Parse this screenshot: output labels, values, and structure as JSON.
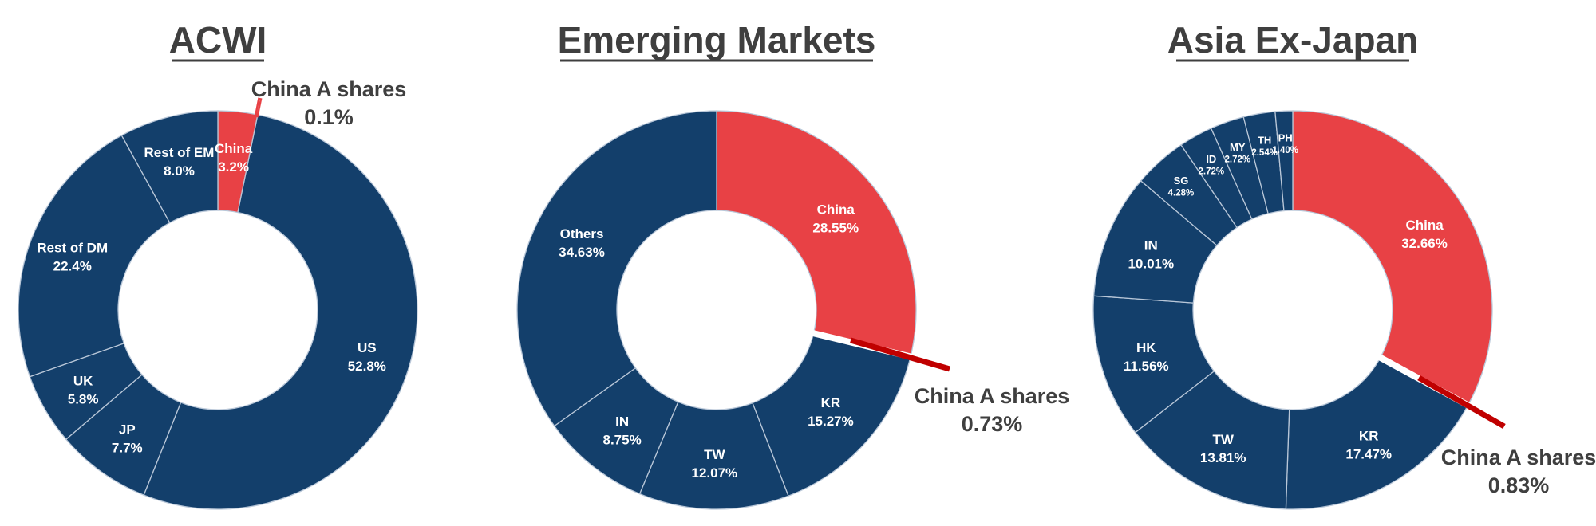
{
  "colors": {
    "navy": "#133f6b",
    "china_red": "#e84145",
    "china_a_dark_red": "#c00000",
    "divider": "#b9c7d8",
    "title_text": "#3f3f3f",
    "label_text": "#ffffff"
  },
  "chart_data": [
    {
      "type": "pie",
      "variant": "donut",
      "title": "ACWI",
      "start": "12 o'clock",
      "direction": "clockwise",
      "slices": [
        {
          "name": "China",
          "value": 3.2,
          "label": "3.2%",
          "color": "#e84145"
        },
        {
          "name": "US",
          "value": 52.8,
          "label": "52.8%",
          "color": "#133f6b"
        },
        {
          "name": "JP",
          "value": 7.7,
          "label": "7.7%",
          "color": "#133f6b"
        },
        {
          "name": "UK",
          "value": 5.8,
          "label": "5.8%",
          "color": "#133f6b"
        },
        {
          "name": "Rest of DM",
          "value": 22.4,
          "label": "22.4%",
          "color": "#133f6b"
        },
        {
          "name": "Rest of EM",
          "value": 8.0,
          "label": "8.0%",
          "color": "#133f6b"
        }
      ],
      "callout": {
        "name": "China A shares",
        "value": 0.1,
        "label": "0.1%"
      }
    },
    {
      "type": "pie",
      "variant": "donut",
      "title": "Emerging Markets",
      "start": "12 o'clock",
      "direction": "clockwise",
      "slices": [
        {
          "name": "China",
          "value": 28.55,
          "label": "28.55%",
          "color": "#e84145"
        },
        {
          "name": "KR",
          "value": 15.27,
          "label": "15.27%",
          "color": "#133f6b"
        },
        {
          "name": "TW",
          "value": 12.07,
          "label": "12.07%",
          "color": "#133f6b"
        },
        {
          "name": "IN",
          "value": 8.75,
          "label": "8.75%",
          "color": "#133f6b"
        },
        {
          "name": "Others",
          "value": 34.63,
          "label": "34.63%",
          "color": "#133f6b"
        }
      ],
      "callout": {
        "name": "China A shares",
        "value": 0.73,
        "label": "0.73%"
      }
    },
    {
      "type": "pie",
      "variant": "donut",
      "title": "Asia Ex-Japan",
      "start": "12 o'clock",
      "direction": "clockwise",
      "slices": [
        {
          "name": "China",
          "value": 32.66,
          "label": "32.66%",
          "color": "#e84145"
        },
        {
          "name": "KR",
          "value": 17.47,
          "label": "17.47%",
          "color": "#133f6b"
        },
        {
          "name": "TW",
          "value": 13.81,
          "label": "13.81%",
          "color": "#133f6b"
        },
        {
          "name": "HK",
          "value": 11.56,
          "label": "11.56%",
          "color": "#133f6b"
        },
        {
          "name": "IN",
          "value": 10.01,
          "label": "10.01%",
          "color": "#133f6b"
        },
        {
          "name": "SG",
          "value": 4.28,
          "label": "4.28%",
          "color": "#133f6b"
        },
        {
          "name": "ID",
          "value": 2.72,
          "label": "2.72%",
          "color": "#133f6b"
        },
        {
          "name": "MY",
          "value": 2.72,
          "label": "2.72%",
          "color": "#133f6b"
        },
        {
          "name": "TH",
          "value": 2.54,
          "label": "2.54%",
          "color": "#133f6b"
        },
        {
          "name": "PH",
          "value": 1.4,
          "label": "1.40%",
          "color": "#133f6b"
        }
      ],
      "callout": {
        "name": "China A shares",
        "value": 0.83,
        "label": "0.83%"
      }
    }
  ]
}
